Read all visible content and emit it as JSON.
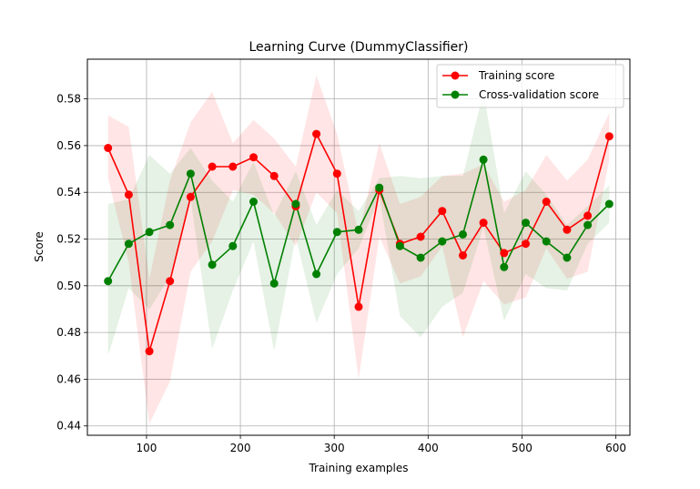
{
  "chart_data": {
    "type": "line",
    "title": "Learning Curve (DummyClassifier)",
    "xlabel": "Training examples",
    "ylabel": "Score",
    "xlim": [
      37,
      615
    ],
    "ylim": [
      0.436,
      0.597
    ],
    "xticks": [
      100,
      200,
      300,
      400,
      500,
      600
    ],
    "yticks": [
      0.44,
      0.46,
      0.48,
      0.5,
      0.52,
      0.54,
      0.56,
      0.58
    ],
    "grid": true,
    "legend_position": "top-right",
    "x": [
      59,
      81,
      103,
      125,
      147,
      170,
      192,
      214,
      236,
      259,
      281,
      303,
      326,
      348,
      370,
      392,
      415,
      437,
      459,
      481,
      504,
      526,
      548,
      570,
      593
    ],
    "series": [
      {
        "name": "Training score",
        "color": "#ff0000",
        "values": [
          0.559,
          0.539,
          0.472,
          0.502,
          0.538,
          0.551,
          0.551,
          0.555,
          0.547,
          0.534,
          0.565,
          0.548,
          0.491,
          0.541,
          0.518,
          0.521,
          0.532,
          0.513,
          0.527,
          0.514,
          0.518,
          0.536,
          0.524,
          0.53,
          0.564
        ],
        "upper": [
          0.573,
          0.568,
          0.503,
          0.545,
          0.57,
          0.583,
          0.561,
          0.571,
          0.563,
          0.551,
          0.59,
          0.565,
          0.522,
          0.561,
          0.535,
          0.538,
          0.547,
          0.548,
          0.552,
          0.536,
          0.541,
          0.556,
          0.545,
          0.554,
          0.574
        ],
        "lower": [
          0.546,
          0.51,
          0.441,
          0.459,
          0.506,
          0.519,
          0.541,
          0.539,
          0.531,
          0.517,
          0.54,
          0.531,
          0.46,
          0.521,
          0.501,
          0.504,
          0.517,
          0.478,
          0.502,
          0.492,
          0.495,
          0.516,
          0.503,
          0.506,
          0.554
        ]
      },
      {
        "name": "Cross-validation score",
        "color": "#008000",
        "values": [
          0.502,
          0.518,
          0.523,
          0.526,
          0.548,
          0.509,
          0.517,
          0.536,
          0.501,
          0.535,
          0.505,
          0.523,
          0.524,
          0.542,
          0.517,
          0.512,
          0.519,
          0.522,
          0.554,
          0.508,
          0.527,
          0.519,
          0.512,
          0.526,
          0.535
        ],
        "upper": [
          0.535,
          0.537,
          0.556,
          0.548,
          0.559,
          0.545,
          0.536,
          0.553,
          0.53,
          0.549,
          0.526,
          0.541,
          0.532,
          0.546,
          0.547,
          0.546,
          0.547,
          0.547,
          0.583,
          0.531,
          0.549,
          0.539,
          0.526,
          0.534,
          0.543
        ],
        "lower": [
          0.47,
          0.499,
          0.49,
          0.504,
          0.537,
          0.473,
          0.498,
          0.519,
          0.472,
          0.521,
          0.484,
          0.505,
          0.516,
          0.538,
          0.487,
          0.478,
          0.491,
          0.497,
          0.525,
          0.485,
          0.505,
          0.499,
          0.498,
          0.518,
          0.527
        ]
      }
    ]
  }
}
